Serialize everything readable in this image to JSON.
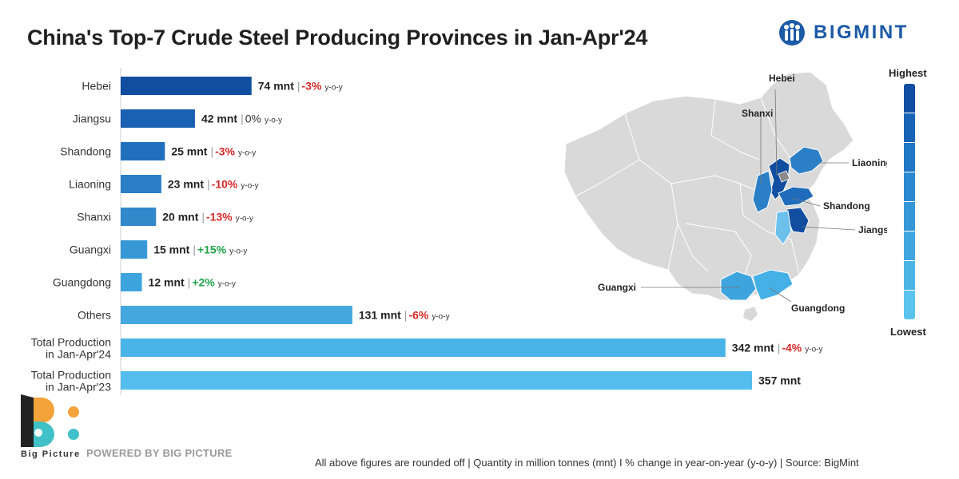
{
  "title": "China's Top-7 Crude Steel Producing Provinces in Jan-Apr'24",
  "brand": {
    "name": "BIGMINT"
  },
  "legend": {
    "high": "Highest",
    "low": "Lowest",
    "colors": [
      "#0f4fa3",
      "#1763b5",
      "#1f76c4",
      "#2a88d0",
      "#3697d8",
      "#41a6df",
      "#4db5e6",
      "#5ac3ee"
    ]
  },
  "chart_data": {
    "type": "bar",
    "orientation": "horizontal",
    "unit": "mnt",
    "yoy_suffix": "y-o-y",
    "categories": [
      "Hebei",
      "Jiangsu",
      "Shandong",
      "Liaoning",
      "Shanxi",
      "Guangxi",
      "Guangdong",
      "Others",
      "Total Production\nin Jan-Apr'24",
      "Total Production\nin Jan-Apr'23"
    ],
    "values": [
      74,
      42,
      25,
      23,
      20,
      15,
      12,
      131,
      342,
      357
    ],
    "yoy_change": [
      "-3%",
      "0%",
      "-3%",
      "-10%",
      "-13%",
      "+15%",
      "+2%",
      "-6%",
      "-4%",
      ""
    ],
    "bar_colors": [
      "#124ea0",
      "#1a61b3",
      "#2170bd",
      "#2b7fc6",
      "#3189cc",
      "#3898d6",
      "#3ea4de",
      "#44a8df",
      "#4ab3e7",
      "#54bdee"
    ],
    "change_colors": {
      "negative": "#d62828",
      "positive": "#1fa34a",
      "neutral": "#333333"
    },
    "xlim": [
      0,
      357
    ]
  },
  "map": {
    "labels": [
      "Hebei",
      "Shanxi",
      "Liaoning",
      "Shandong",
      "Jiangsu",
      "Guangxi",
      "Guangdong"
    ]
  },
  "footer": {
    "logo_caption": "Big Picture",
    "powered_by": "POWERED BY BIG PICTURE",
    "note": "All above figures are rounded off | Quantity in million tonnes (mnt)  I  % change in year-on-year (y-o-y) | Source: BigMint"
  }
}
